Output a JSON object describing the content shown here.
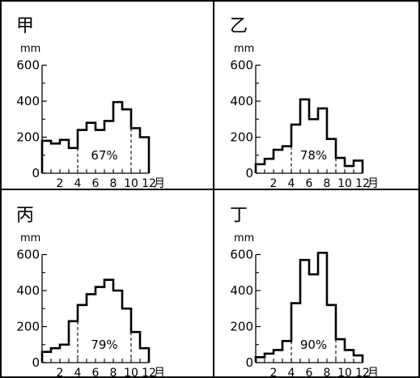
{
  "chart_data": [
    {
      "type": "bar",
      "panel_label": "甲",
      "y_unit": "mm",
      "x_unit": "月",
      "x": [
        1,
        2,
        3,
        4,
        5,
        6,
        7,
        8,
        9,
        10,
        11,
        12
      ],
      "values": [
        180,
        165,
        185,
        140,
        240,
        280,
        240,
        290,
        395,
        355,
        250,
        200
      ],
      "ylim": [
        0,
        600
      ],
      "yticks": [
        0,
        200,
        400,
        600
      ],
      "xtick_labels": [
        "2",
        "4",
        "6",
        "8",
        "10",
        "12"
      ],
      "annotation": "67%",
      "highlight_months": [
        4,
        10
      ]
    },
    {
      "type": "bar",
      "panel_label": "乙",
      "y_unit": "mm",
      "x_unit": "月",
      "x": [
        1,
        2,
        3,
        4,
        5,
        6,
        7,
        8,
        9,
        10,
        11,
        12
      ],
      "values": [
        50,
        80,
        130,
        150,
        270,
        410,
        300,
        360,
        190,
        85,
        40,
        70
      ],
      "ylim": [
        0,
        600
      ],
      "yticks": [
        0,
        200,
        400,
        600
      ],
      "xtick_labels": [
        "2",
        "4",
        "6",
        "8",
        "10",
        "12"
      ],
      "annotation": "78%",
      "highlight_months": [
        4,
        9
      ]
    },
    {
      "type": "bar",
      "panel_label": "丙",
      "y_unit": "mm",
      "x_unit": "月",
      "x": [
        1,
        2,
        3,
        4,
        5,
        6,
        7,
        8,
        9,
        10,
        11,
        12
      ],
      "values": [
        60,
        80,
        100,
        230,
        320,
        380,
        420,
        460,
        400,
        300,
        170,
        80
      ],
      "ylim": [
        0,
        600
      ],
      "yticks": [
        0,
        200,
        400,
        600
      ],
      "xtick_labels": [
        "2",
        "4",
        "6",
        "8",
        "10",
        "12"
      ],
      "annotation": "79%",
      "highlight_months": [
        4,
        10
      ]
    },
    {
      "type": "bar",
      "panel_label": "丁",
      "y_unit": "mm",
      "x_unit": "月",
      "x": [
        1,
        2,
        3,
        4,
        5,
        6,
        7,
        8,
        9,
        10,
        11,
        12
      ],
      "values": [
        30,
        50,
        70,
        120,
        330,
        570,
        490,
        610,
        320,
        130,
        70,
        40
      ],
      "ylim": [
        0,
        600
      ],
      "yticks": [
        0,
        200,
        400,
        600
      ],
      "xtick_labels": [
        "2",
        "4",
        "6",
        "8",
        "10",
        "12"
      ],
      "annotation": "90%",
      "highlight_months": [
        4,
        9
      ]
    }
  ]
}
